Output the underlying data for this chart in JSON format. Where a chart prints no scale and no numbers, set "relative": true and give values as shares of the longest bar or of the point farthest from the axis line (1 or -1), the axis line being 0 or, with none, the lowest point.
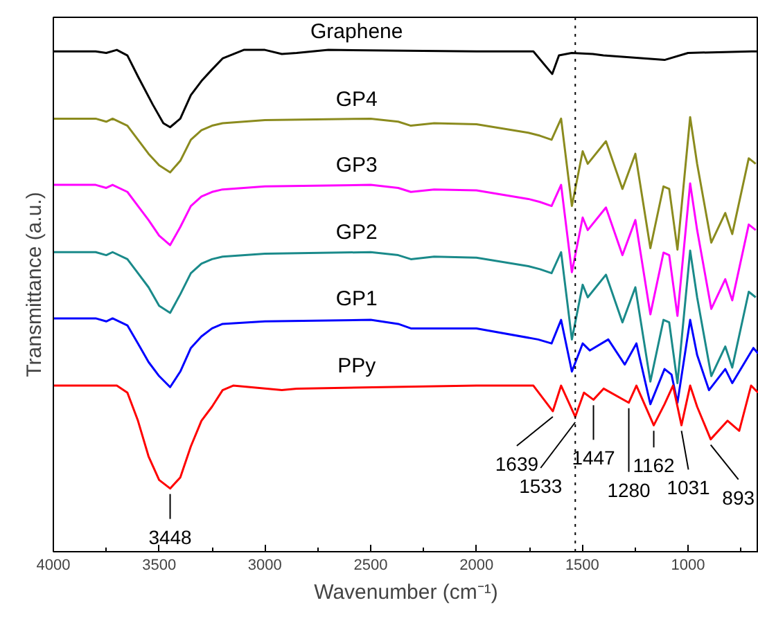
{
  "chart_data": {
    "type": "line",
    "xlabel": "Wavenumber (cm⁻¹)",
    "ylabel": "Transmittance (a.u.)",
    "relative": true,
    "xlim": [
      4000,
      666
    ],
    "xticks": [
      4000,
      3500,
      3000,
      2500,
      2000,
      1500,
      1000
    ],
    "tick_labels": "x",
    "grid": false,
    "line_style": "solid",
    "ref_lines": [
      {
        "axis": "x",
        "value": 1533,
        "color": "#000000",
        "line_style": "dotted"
      }
    ],
    "annotations": [
      {
        "text": "3448",
        "x": 3448,
        "y": 0.126
      },
      {
        "text": "1639",
        "x": 1639,
        "y": 0.28
      },
      {
        "text": "1533",
        "x": 1533,
        "y": 0.269
      },
      {
        "text": "1447",
        "x": 1447,
        "y": 0.303
      },
      {
        "text": "1280",
        "x": 1280,
        "y": 0.297
      },
      {
        "text": "1162",
        "x": 1162,
        "y": 0.252
      },
      {
        "text": "1031",
        "x": 1031,
        "y": 0.252
      },
      {
        "text": "893",
        "x": 893,
        "y": 0.224
      }
    ],
    "series": [
      {
        "name": "Graphene",
        "color": "#000000",
        "x": [
          4000,
          3800,
          3750,
          3700,
          3650,
          3600,
          3530,
          3480,
          3448,
          3400,
          3350,
          3300,
          3250,
          3200,
          3100,
          3000,
          2920,
          2850,
          2700,
          2000,
          1731,
          1642,
          1610,
          1550,
          1450,
          1400,
          1111,
          1000,
          700,
          669
        ],
        "values": [
          0.997,
          0.997,
          0.994,
          1.0,
          0.989,
          0.947,
          0.891,
          0.854,
          0.846,
          0.863,
          0.91,
          0.938,
          0.961,
          0.983,
          1.0,
          1.0,
          0.992,
          0.994,
          1.0,
          0.997,
          0.997,
          0.952,
          0.989,
          0.994,
          0.992,
          0.989,
          0.98,
          0.994,
          0.997,
          0.997
        ]
      },
      {
        "name": "GP4",
        "color": "#8b8b1e",
        "x": [
          4000,
          3800,
          3750,
          3720,
          3650,
          3600,
          3550,
          3500,
          3448,
          3400,
          3350,
          3300,
          3250,
          3200,
          3000,
          2500,
          2370,
          2310,
          2200,
          2000,
          1755,
          1700,
          1645,
          1600,
          1549,
          1498,
          1474,
          1388,
          1310,
          1249,
          1178,
          1116,
          1089,
          1050,
          990,
          957,
          890,
          824,
          791,
          713,
          680
        ],
        "values": [
          0.863,
          0.863,
          0.857,
          0.863,
          0.849,
          0.821,
          0.793,
          0.77,
          0.756,
          0.779,
          0.821,
          0.84,
          0.849,
          0.854,
          0.86,
          0.863,
          0.857,
          0.849,
          0.854,
          0.852,
          0.835,
          0.829,
          0.821,
          0.863,
          0.689,
          0.798,
          0.773,
          0.818,
          0.723,
          0.793,
          0.605,
          0.728,
          0.723,
          0.602,
          0.866,
          0.773,
          0.616,
          0.675,
          0.633,
          0.784,
          0.773
        ]
      },
      {
        "name": "GP3",
        "color": "#ff00ff",
        "x": [
          4000,
          3800,
          3750,
          3720,
          3650,
          3600,
          3550,
          3500,
          3448,
          3400,
          3350,
          3300,
          3250,
          3200,
          3000,
          2500,
          2370,
          2310,
          2200,
          2000,
          1755,
          1700,
          1645,
          1600,
          1549,
          1498,
          1474,
          1388,
          1310,
          1249,
          1178,
          1116,
          1089,
          1050,
          990,
          957,
          890,
          824,
          791,
          713,
          680
        ],
        "values": [
          0.731,
          0.731,
          0.725,
          0.731,
          0.717,
          0.689,
          0.661,
          0.63,
          0.611,
          0.647,
          0.689,
          0.708,
          0.717,
          0.722,
          0.728,
          0.731,
          0.725,
          0.717,
          0.722,
          0.72,
          0.703,
          0.697,
          0.689,
          0.731,
          0.557,
          0.666,
          0.641,
          0.686,
          0.591,
          0.661,
          0.473,
          0.596,
          0.591,
          0.47,
          0.734,
          0.641,
          0.484,
          0.543,
          0.501,
          0.652,
          0.641
        ]
      },
      {
        "name": "GP2",
        "color": "#1a8a8a",
        "x": [
          4000,
          3800,
          3750,
          3720,
          3650,
          3600,
          3550,
          3500,
          3448,
          3400,
          3350,
          3300,
          3250,
          3200,
          3000,
          2500,
          2370,
          2310,
          2200,
          2000,
          1755,
          1700,
          1645,
          1600,
          1549,
          1498,
          1474,
          1388,
          1310,
          1249,
          1178,
          1116,
          1089,
          1050,
          990,
          957,
          890,
          824,
          791,
          713,
          680
        ],
        "values": [
          0.597,
          0.597,
          0.591,
          0.597,
          0.583,
          0.555,
          0.527,
          0.49,
          0.476,
          0.513,
          0.555,
          0.574,
          0.583,
          0.588,
          0.594,
          0.597,
          0.591,
          0.583,
          0.588,
          0.586,
          0.569,
          0.563,
          0.555,
          0.597,
          0.423,
          0.532,
          0.507,
          0.552,
          0.457,
          0.527,
          0.339,
          0.462,
          0.457,
          0.336,
          0.6,
          0.507,
          0.35,
          0.409,
          0.367,
          0.518,
          0.507
        ]
      },
      {
        "name": "GP1",
        "color": "#0000ff",
        "x": [
          4000,
          3800,
          3750,
          3720,
          3650,
          3600,
          3550,
          3500,
          3448,
          3400,
          3350,
          3300,
          3250,
          3200,
          3000,
          2500,
          2370,
          2310,
          2000,
          1709,
          1645,
          1600,
          1549,
          1498,
          1464,
          1377,
          1299,
          1244,
          1178,
          1111,
          1078,
          1050,
          990,
          957,
          901,
          824,
          791,
          691,
          669
        ],
        "values": [
          0.465,
          0.465,
          0.459,
          0.465,
          0.451,
          0.415,
          0.378,
          0.35,
          0.328,
          0.359,
          0.406,
          0.429,
          0.445,
          0.454,
          0.459,
          0.462,
          0.454,
          0.445,
          0.445,
          0.423,
          0.415,
          0.462,
          0.359,
          0.415,
          0.401,
          0.423,
          0.373,
          0.415,
          0.294,
          0.364,
          0.353,
          0.297,
          0.462,
          0.392,
          0.322,
          0.364,
          0.336,
          0.406,
          0.395
        ]
      },
      {
        "name": "PPy",
        "color": "#ff0000",
        "x": [
          4000,
          3700,
          3650,
          3600,
          3550,
          3500,
          3448,
          3400,
          3350,
          3300,
          3250,
          3200,
          3150,
          2920,
          2850,
          2000,
          1731,
          1639,
          1600,
          1533,
          1492,
          1447,
          1399,
          1280,
          1244,
          1162,
          1111,
          1071,
          1031,
          990,
          957,
          893,
          813,
          758,
          702,
          669
        ],
        "values": [
          0.331,
          0.331,
          0.317,
          0.261,
          0.19,
          0.143,
          0.126,
          0.148,
          0.21,
          0.261,
          0.289,
          0.322,
          0.331,
          0.322,
          0.325,
          0.331,
          0.331,
          0.28,
          0.331,
          0.269,
          0.317,
          0.303,
          0.325,
          0.297,
          0.331,
          0.252,
          0.294,
          0.331,
          0.252,
          0.331,
          0.289,
          0.224,
          0.261,
          0.241,
          0.331,
          0.317
        ]
      }
    ]
  }
}
